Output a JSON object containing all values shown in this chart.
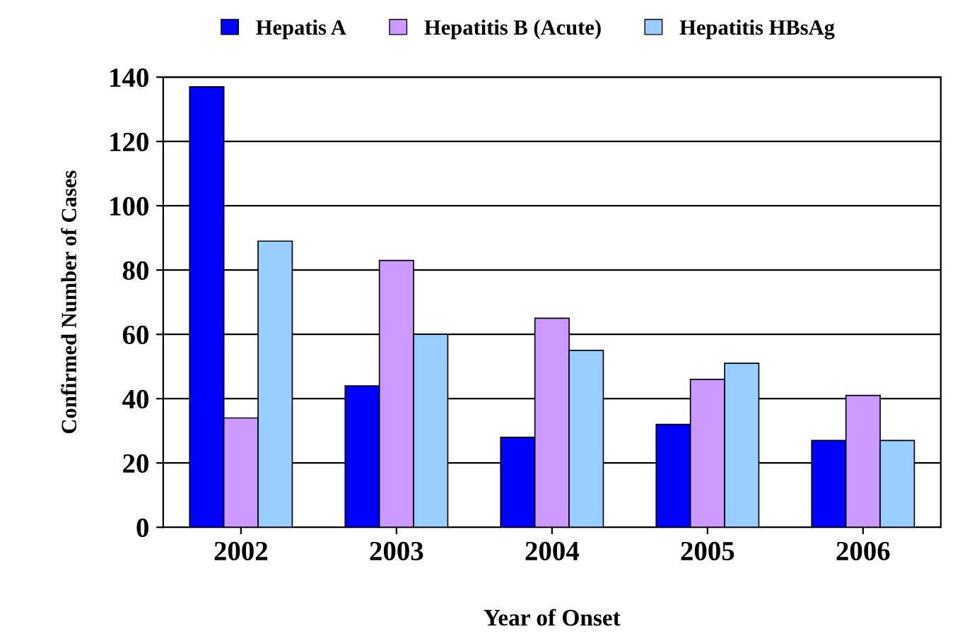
{
  "chart_data": {
    "type": "bar",
    "xlabel": "Year of Onset",
    "ylabel": "Confirmed Number of Cases",
    "categories": [
      "2002",
      "2003",
      "2004",
      "2005",
      "2006"
    ],
    "series": [
      {
        "name": "Hepatis A",
        "color": "#0000ff",
        "values": [
          137,
          44,
          28,
          32,
          27
        ]
      },
      {
        "name": "Hepatitis B (Acute)",
        "color": "#cc99ff",
        "values": [
          34,
          83,
          65,
          46,
          41
        ]
      },
      {
        "name": "Hepatitis HBsAg",
        "color": "#99ccff",
        "values": [
          89,
          60,
          55,
          51,
          27
        ]
      }
    ],
    "ylim": [
      0,
      140
    ],
    "yticks": [
      0,
      20,
      40,
      60,
      80,
      100,
      120,
      140
    ],
    "grid": "y",
    "legend": "top"
  }
}
